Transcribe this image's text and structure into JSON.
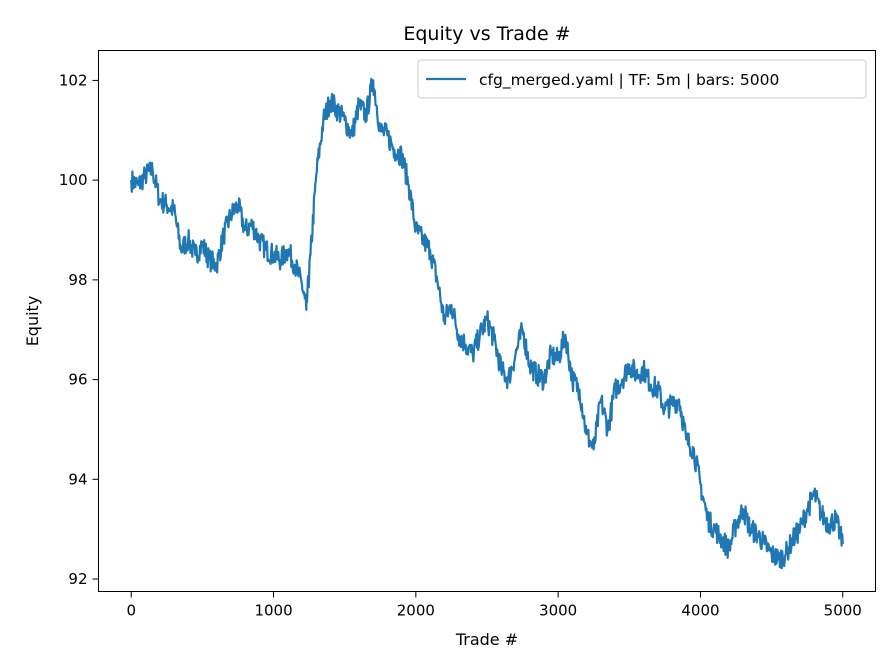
{
  "chart_data": {
    "type": "line",
    "title": "Equity vs Trade #",
    "xlabel": "Trade #",
    "ylabel": "Equity",
    "xlim": [
      -230,
      5230
    ],
    "ylim": [
      91.75,
      102.6
    ],
    "xticks": [
      0,
      1000,
      2000,
      3000,
      4000,
      5000
    ],
    "yticks": [
      92,
      94,
      96,
      98,
      100,
      102
    ],
    "grid": false,
    "legend_position": "top-right",
    "colors": {
      "line": "#1f77b4",
      "axes": "#000000",
      "background": "#ffffff"
    },
    "series": [
      {
        "name": "cfg_merged.yaml | TF: 5m | bars: 5000",
        "x": [
          0,
          50,
          100,
          150,
          200,
          250,
          300,
          350,
          400,
          450,
          500,
          550,
          600,
          650,
          700,
          750,
          800,
          850,
          900,
          950,
          1000,
          1050,
          1100,
          1150,
          1200,
          1230,
          1260,
          1300,
          1350,
          1400,
          1450,
          1500,
          1550,
          1600,
          1650,
          1700,
          1750,
          1800,
          1850,
          1900,
          1950,
          2000,
          2050,
          2100,
          2150,
          2200,
          2250,
          2300,
          2350,
          2400,
          2450,
          2500,
          2550,
          2600,
          2650,
          2700,
          2750,
          2800,
          2850,
          2900,
          2950,
          3000,
          3050,
          3100,
          3150,
          3200,
          3250,
          3300,
          3350,
          3400,
          3450,
          3500,
          3550,
          3600,
          3650,
          3700,
          3750,
          3800,
          3850,
          3900,
          3950,
          4000,
          4050,
          4100,
          4150,
          4200,
          4250,
          4300,
          4350,
          4400,
          4450,
          4500,
          4550,
          4600,
          4650,
          4700,
          4750,
          4800,
          4850,
          4900,
          4950,
          5000
        ],
        "values": [
          100.0,
          99.9,
          100.1,
          100.2,
          99.6,
          99.5,
          99.4,
          98.6,
          98.8,
          98.5,
          98.7,
          98.4,
          98.3,
          98.9,
          99.3,
          99.5,
          99.0,
          99.1,
          98.8,
          98.6,
          98.5,
          98.4,
          98.6,
          98.3,
          97.9,
          97.4,
          98.5,
          100.1,
          101.2,
          101.6,
          101.4,
          101.2,
          100.9,
          101.5,
          101.3,
          102.0,
          101.0,
          100.9,
          100.6,
          100.5,
          99.9,
          99.0,
          98.8,
          98.6,
          98.0,
          97.2,
          97.5,
          96.9,
          96.7,
          96.5,
          96.9,
          97.2,
          96.8,
          96.2,
          96.0,
          96.5,
          97.0,
          96.3,
          96.1,
          96.0,
          96.5,
          96.4,
          96.9,
          96.0,
          95.8,
          94.9,
          94.6,
          95.6,
          95.0,
          95.8,
          96.0,
          96.3,
          96.1,
          96.2,
          95.9,
          95.8,
          95.4,
          95.5,
          95.6,
          94.8,
          94.6,
          93.9,
          93.2,
          93.0,
          92.8,
          92.6,
          93.1,
          93.4,
          93.0,
          92.9,
          92.7,
          92.5,
          92.4,
          92.5,
          92.8,
          93.0,
          93.4,
          93.7,
          93.3,
          93.1,
          93.2,
          92.7
        ]
      }
    ]
  }
}
